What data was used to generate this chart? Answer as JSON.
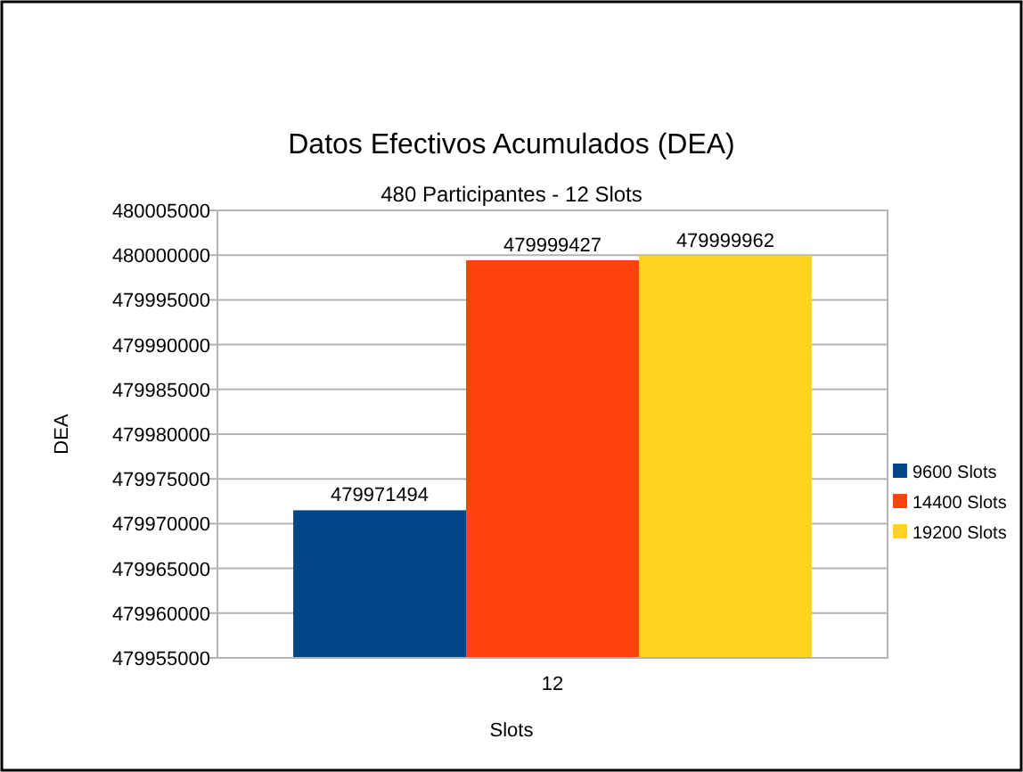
{
  "chart_data": {
    "type": "bar",
    "title": "Datos Efectivos Acumulados (DEA)",
    "subtitle": "480 Participantes - 12 Slots",
    "xlabel": "Slots",
    "ylabel": "DEA",
    "categories": [
      "12"
    ],
    "series": [
      {
        "name": "9600 Slots",
        "color": "#004586",
        "values": [
          479971494
        ]
      },
      {
        "name": "14400 Slots",
        "color": "#ff420e",
        "values": [
          479999427
        ]
      },
      {
        "name": "19200 Slots",
        "color": "#ffd320",
        "values": [
          479999962
        ]
      }
    ],
    "ylim": [
      479955000,
      480005000
    ],
    "yticks": [
      479955000,
      479960000,
      479965000,
      479970000,
      479975000,
      479980000,
      479985000,
      479990000,
      479995000,
      480000000,
      480005000
    ],
    "grid": "y",
    "legend": "right",
    "data_labels": true
  }
}
